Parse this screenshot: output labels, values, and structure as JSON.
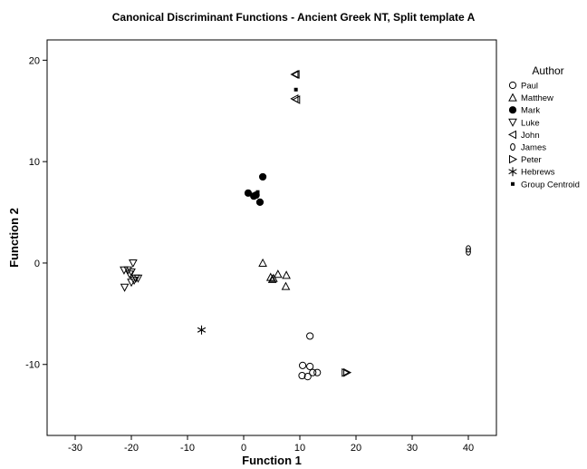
{
  "chart_data": {
    "type": "scatter",
    "title": "Canonical Discriminant Functions - Ancient Greek NT, Split template A",
    "xlabel": "Function 1",
    "ylabel": "Function 2",
    "xlim": [
      -35,
      45
    ],
    "ylim": [
      -17,
      22
    ],
    "xticks": [
      -30,
      -20,
      -10,
      0,
      10,
      20,
      30,
      40
    ],
    "yticks": [
      -10,
      0,
      10,
      20
    ],
    "grid": false,
    "legend": {
      "title": "Author",
      "position": "right"
    },
    "series": [
      {
        "name": "Paul",
        "marker": "circle-open",
        "points": [
          [
            11.8,
            -7.2
          ],
          [
            10.5,
            -10.1
          ],
          [
            11.8,
            -10.2
          ],
          [
            10.4,
            -11.1
          ],
          [
            11.4,
            -11.2
          ],
          [
            12.3,
            -10.8
          ],
          [
            13.1,
            -10.8
          ]
        ]
      },
      {
        "name": "Matthew",
        "marker": "triangle-up-open",
        "points": [
          [
            3.4,
            0.0
          ],
          [
            6.1,
            -1.1
          ],
          [
            7.6,
            -1.2
          ],
          [
            4.8,
            -1.4
          ],
          [
            5.3,
            -1.5
          ],
          [
            5.1,
            -1.6
          ],
          [
            7.5,
            -2.3
          ]
        ]
      },
      {
        "name": "Mark",
        "marker": "circle-filled",
        "points": [
          [
            3.4,
            8.5
          ],
          [
            0.8,
            6.9
          ],
          [
            2.2,
            6.7
          ],
          [
            1.8,
            6.6
          ],
          [
            2.9,
            6.0
          ]
        ]
      },
      {
        "name": "Luke",
        "marker": "triangle-down-open",
        "points": [
          [
            -19.7,
            0.0
          ],
          [
            -21.3,
            -0.7
          ],
          [
            -20.6,
            -0.7
          ],
          [
            -20.0,
            -0.9
          ],
          [
            -20.3,
            -1.1
          ],
          [
            -19.2,
            -1.5
          ],
          [
            -18.8,
            -1.5
          ],
          [
            -19.5,
            -1.7
          ],
          [
            -20.0,
            -1.9
          ],
          [
            -21.2,
            -2.4
          ]
        ]
      },
      {
        "name": "John",
        "marker": "triangle-left-open",
        "points": [
          [
            9.1,
            18.6
          ],
          [
            9.3,
            18.6
          ],
          [
            9.1,
            16.2
          ],
          [
            9.4,
            16.1
          ]
        ]
      },
      {
        "name": "James",
        "marker": "ellipse-open",
        "points": [
          [
            40.0,
            1.4
          ],
          [
            40.0,
            1.1
          ]
        ]
      },
      {
        "name": "Peter",
        "marker": "triangle-right-open",
        "points": [
          [
            18.1,
            -10.8
          ],
          [
            18.4,
            -10.8
          ]
        ]
      },
      {
        "name": "Hebrews",
        "marker": "asterisk",
        "points": [
          [
            -7.5,
            -6.6
          ]
        ]
      },
      {
        "name": "Group Centroid",
        "marker": "square-filled",
        "points": [
          [
            9.3,
            17.1
          ],
          [
            2.5,
            7.0
          ]
        ]
      }
    ]
  }
}
